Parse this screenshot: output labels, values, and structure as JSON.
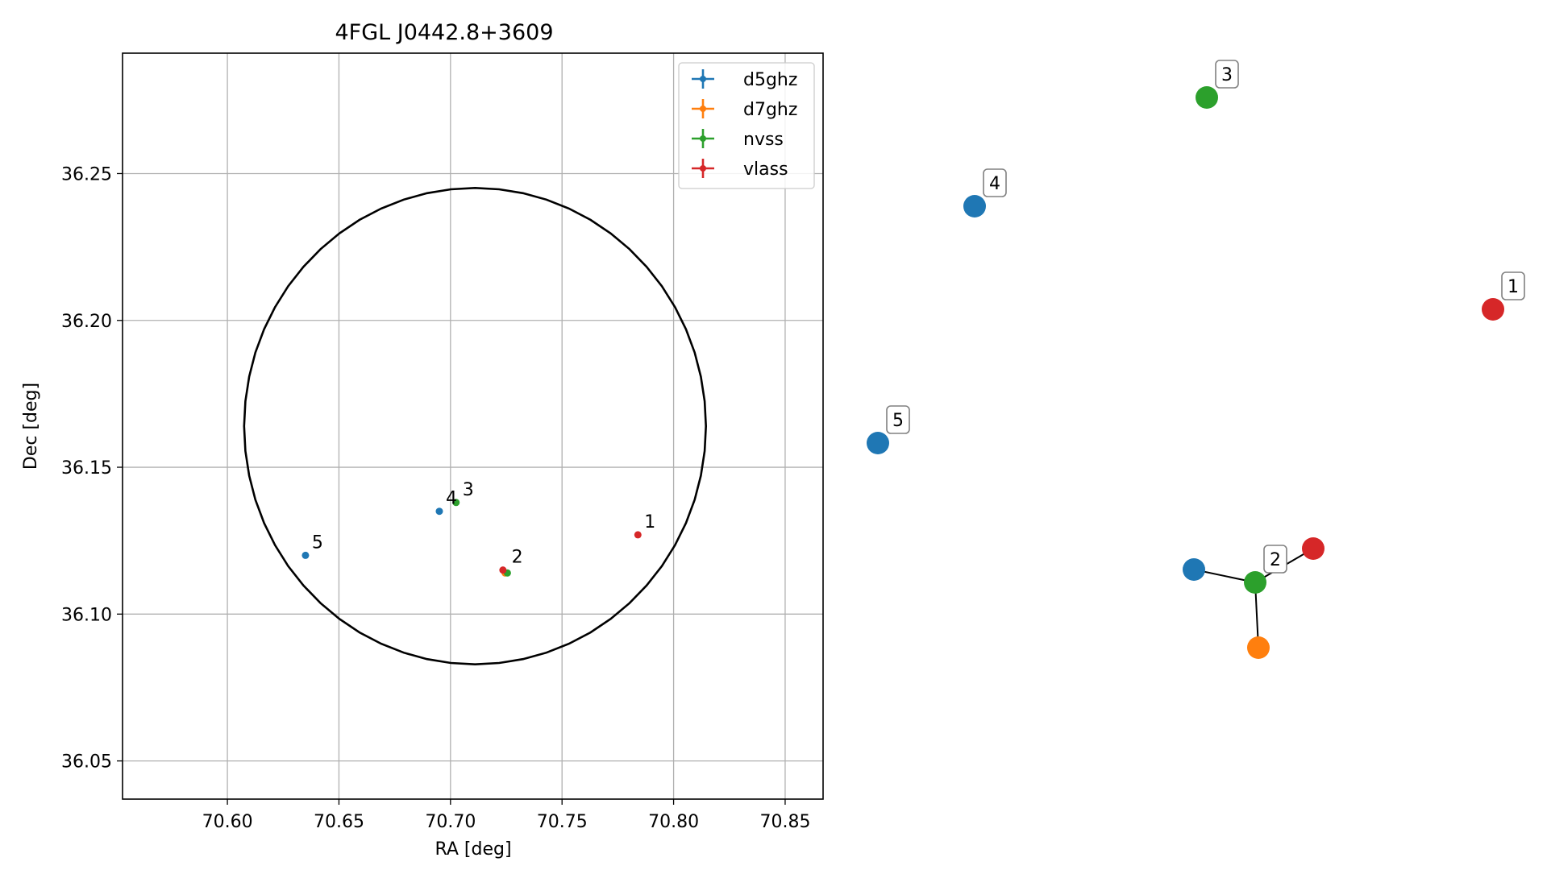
{
  "chart_data": [
    {
      "type": "scatter",
      "title": "4FGL J0442.8+3609",
      "xlabel": "RA [deg]",
      "ylabel": "Dec [deg]",
      "xlim": [
        70.553,
        70.867
      ],
      "ylim": [
        36.037,
        36.291
      ],
      "xticks": [
        "70.60",
        "70.65",
        "70.70",
        "70.75",
        "70.80",
        "70.85"
      ],
      "yticks": [
        "36.05",
        "36.10",
        "36.15",
        "36.20",
        "36.25"
      ],
      "grid": true,
      "legend": {
        "placement": "top-right",
        "entries": [
          {
            "name": "d5ghz",
            "color": "#1f77b4"
          },
          {
            "name": "d7ghz",
            "color": "#ff7f0e"
          },
          {
            "name": "nvss",
            "color": "#2ca02c"
          },
          {
            "name": "vlass",
            "color": "#d62728"
          }
        ]
      },
      "uncertainty_ellipse": {
        "center_ra": 70.711,
        "center_dec": 36.164,
        "radius_ra": 0.1035,
        "radius_dec": 0.0811,
        "color": "#000000"
      },
      "series": [
        {
          "name": "d5ghz",
          "color": "#1f77b4",
          "points": [
            {
              "x": 70.695,
              "y": 36.135
            },
            {
              "x": 70.635,
              "y": 36.12
            }
          ]
        },
        {
          "name": "d7ghz",
          "color": "#ff7f0e",
          "points": [
            {
              "x": 70.7245,
              "y": 36.114
            }
          ]
        },
        {
          "name": "nvss",
          "color": "#2ca02c",
          "points": [
            {
              "x": 70.7025,
              "y": 36.138
            },
            {
              "x": 70.7255,
              "y": 36.114
            }
          ]
        },
        {
          "name": "vlass",
          "color": "#d62728",
          "points": [
            {
              "x": 70.784,
              "y": 36.127
            },
            {
              "x": 70.7235,
              "y": 36.115
            }
          ]
        }
      ],
      "point_labels": [
        {
          "text": "1",
          "x": 70.784,
          "y": 36.127
        },
        {
          "text": "2",
          "x": 70.7245,
          "y": 36.115
        },
        {
          "text": "3",
          "x": 70.7025,
          "y": 36.138
        },
        {
          "text": "4",
          "x": 70.695,
          "y": 36.135
        },
        {
          "text": "5",
          "x": 70.635,
          "y": 36.12
        }
      ]
    },
    {
      "type": "network",
      "nodes": [
        {
          "id": "v1",
          "color": "#d62728",
          "label": "1"
        },
        {
          "id": "n3",
          "color": "#2ca02c",
          "label": "3"
        },
        {
          "id": "d4",
          "color": "#1f77b4",
          "label": "4"
        },
        {
          "id": "d5",
          "color": "#1f77b4",
          "label": "5"
        },
        {
          "id": "n2",
          "color": "#2ca02c",
          "label": "2"
        },
        {
          "id": "d2",
          "color": "#1f77b4",
          "label": ""
        },
        {
          "id": "v2",
          "color": "#d62728",
          "label": ""
        },
        {
          "id": "o2",
          "color": "#ff7f0e",
          "label": ""
        }
      ],
      "edges": [
        [
          "n2",
          "d2"
        ],
        [
          "n2",
          "v2"
        ],
        [
          "n2",
          "o2"
        ]
      ]
    }
  ]
}
